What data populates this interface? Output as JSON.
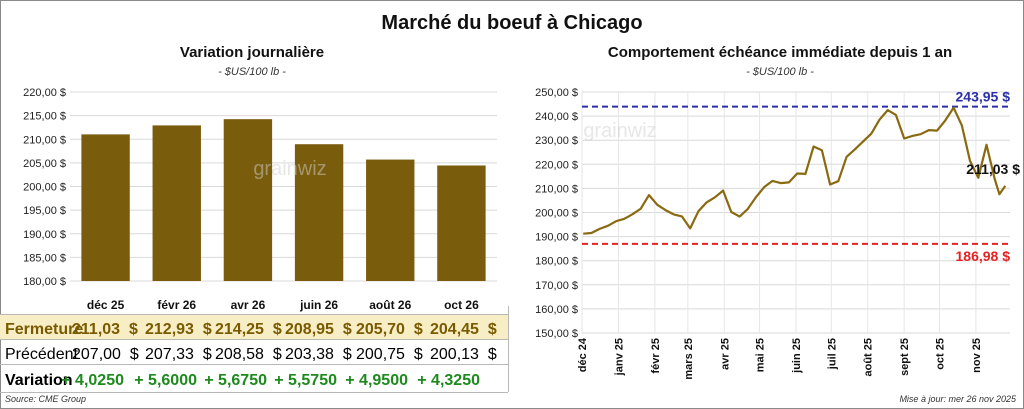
{
  "title": "Marché du boeuf à Chicago",
  "watermark": "grainwiz",
  "footer": {
    "source": "Source: CME Group",
    "updated": "Mise à jour: mer 26 nov 2025"
  },
  "table": {
    "rows": [
      {
        "label": "Fermeture",
        "values": [
          "211,03",
          "212,93",
          "214,25",
          "208,95",
          "205,70",
          "204,45"
        ],
        "unit": "$"
      },
      {
        "label": "Précédent",
        "values": [
          "207,00",
          "207,33",
          "208,58",
          "203,38",
          "200,75",
          "200,13"
        ],
        "unit": "$"
      },
      {
        "label": "Variation",
        "values": [
          "+ 4,0250",
          "+ 5,6000",
          "+ 5,6750",
          "+ 5,5750",
          "+ 4,9500",
          "+ 4,3250"
        ],
        "unit": ""
      }
    ]
  },
  "chart_data": [
    {
      "type": "bar",
      "title": "Variation  journalière",
      "subtitle": "- $US/100 lb -",
      "categories": [
        "déc 25",
        "févr 26",
        "avr 26",
        "juin 26",
        "août 26",
        "oct 26"
      ],
      "values": [
        211.03,
        212.93,
        214.25,
        208.95,
        205.7,
        204.45
      ],
      "ylim": [
        180,
        220
      ],
      "yticks": [
        "180,00 $",
        "185,00 $",
        "190,00 $",
        "195,00 $",
        "200,00 $",
        "205,00 $",
        "210,00 $",
        "215,00 $",
        "220,00 $"
      ],
      "ytick_values": [
        180,
        185,
        190,
        195,
        200,
        205,
        210,
        215,
        220
      ],
      "color": "#7a5c0d",
      "grid": true
    },
    {
      "type": "line",
      "title": "Comportement  échéance immédiate depuis 1 an",
      "subtitle": "- $US/100 lb -",
      "ylim": [
        150,
        250
      ],
      "yticks": [
        "150,00 $",
        "160,00 $",
        "170,00 $",
        "180,00 $",
        "190,00 $",
        "200,00 $",
        "210,00 $",
        "220,00 $",
        "230,00 $",
        "240,00 $",
        "250,00 $"
      ],
      "ytick_values": [
        150,
        160,
        170,
        180,
        190,
        200,
        210,
        220,
        230,
        240,
        250
      ],
      "xticks": [
        "déc 24",
        "janv 25",
        "févr 25",
        "mars 25",
        "avr 25",
        "mai 25",
        "juin 25",
        "juil 25",
        "août 25",
        "sept 25",
        "oct 25",
        "nov 25"
      ],
      "xtick_dates": [
        "2024-12-01",
        "2025-01-01",
        "2025-02-01",
        "2025-03-01",
        "2025-04-01",
        "2025-05-01",
        "2025-06-01",
        "2025-07-01",
        "2025-08-01",
        "2025-09-01",
        "2025-10-01",
        "2025-11-01"
      ],
      "xlim": [
        "2024-12-01",
        "2025-11-30"
      ],
      "series": [
        {
          "color": "#8a6a10",
          "points": [
            [
              "2024-12-02",
              191.2
            ],
            [
              "2024-12-09",
              191.5
            ],
            [
              "2024-12-16",
              193.2
            ],
            [
              "2024-12-23",
              194.5
            ],
            [
              "2024-12-30",
              196.4
            ],
            [
              "2025-01-06",
              197.4
            ],
            [
              "2025-01-13",
              199.3
            ],
            [
              "2025-01-20",
              201.6
            ],
            [
              "2025-01-27",
              207.2
            ],
            [
              "2025-02-03",
              203.2
            ],
            [
              "2025-02-10",
              201.0
            ],
            [
              "2025-02-17",
              199.2
            ],
            [
              "2025-02-24",
              198.4
            ],
            [
              "2025-03-03",
              193.4
            ],
            [
              "2025-03-10",
              200.5
            ],
            [
              "2025-03-17",
              204.2
            ],
            [
              "2025-03-24",
              206.3
            ],
            [
              "2025-03-31",
              209.1
            ],
            [
              "2025-04-07",
              200.2
            ],
            [
              "2025-04-14",
              198.3
            ],
            [
              "2025-04-21",
              201.5
            ],
            [
              "2025-04-28",
              206.4
            ],
            [
              "2025-05-05",
              210.6
            ],
            [
              "2025-05-12",
              213.1
            ],
            [
              "2025-05-19",
              212.2
            ],
            [
              "2025-05-26",
              212.5
            ],
            [
              "2025-06-02",
              216.2
            ],
            [
              "2025-06-09",
              216.0
            ],
            [
              "2025-06-16",
              227.4
            ],
            [
              "2025-06-23",
              225.8
            ],
            [
              "2025-06-30",
              211.6
            ],
            [
              "2025-07-07",
              213.0
            ],
            [
              "2025-07-14",
              223.1
            ],
            [
              "2025-07-21",
              226.2
            ],
            [
              "2025-07-28",
              229.4
            ],
            [
              "2025-08-04",
              232.7
            ],
            [
              "2025-08-11",
              238.5
            ],
            [
              "2025-08-18",
              242.5
            ],
            [
              "2025-08-25",
              240.5
            ],
            [
              "2025-09-01",
              230.7
            ],
            [
              "2025-09-08",
              231.8
            ],
            [
              "2025-09-15",
              232.5
            ],
            [
              "2025-09-22",
              234.2
            ],
            [
              "2025-09-29",
              234.0
            ],
            [
              "2025-10-06",
              238.2
            ],
            [
              "2025-10-13",
              243.5
            ],
            [
              "2025-10-20",
              236.2
            ],
            [
              "2025-10-27",
              221.4
            ],
            [
              "2025-11-03",
              214.4
            ],
            [
              "2025-11-10",
              228.1
            ],
            [
              "2025-11-17",
              213.9
            ],
            [
              "2025-11-21",
              207.6
            ],
            [
              "2025-11-26",
              211.03
            ]
          ]
        }
      ],
      "reference_lines": [
        {
          "value": 243.95,
          "label": "243,95 $",
          "color": "#2b2fa8",
          "style": "dashed"
        },
        {
          "value": 186.98,
          "label": "186,98 $",
          "color": "#e32222",
          "style": "dashed"
        }
      ],
      "annotations": [
        {
          "label": "211,03 $",
          "value": 211.03,
          "color": "#111111"
        }
      ],
      "grid": true
    }
  ]
}
